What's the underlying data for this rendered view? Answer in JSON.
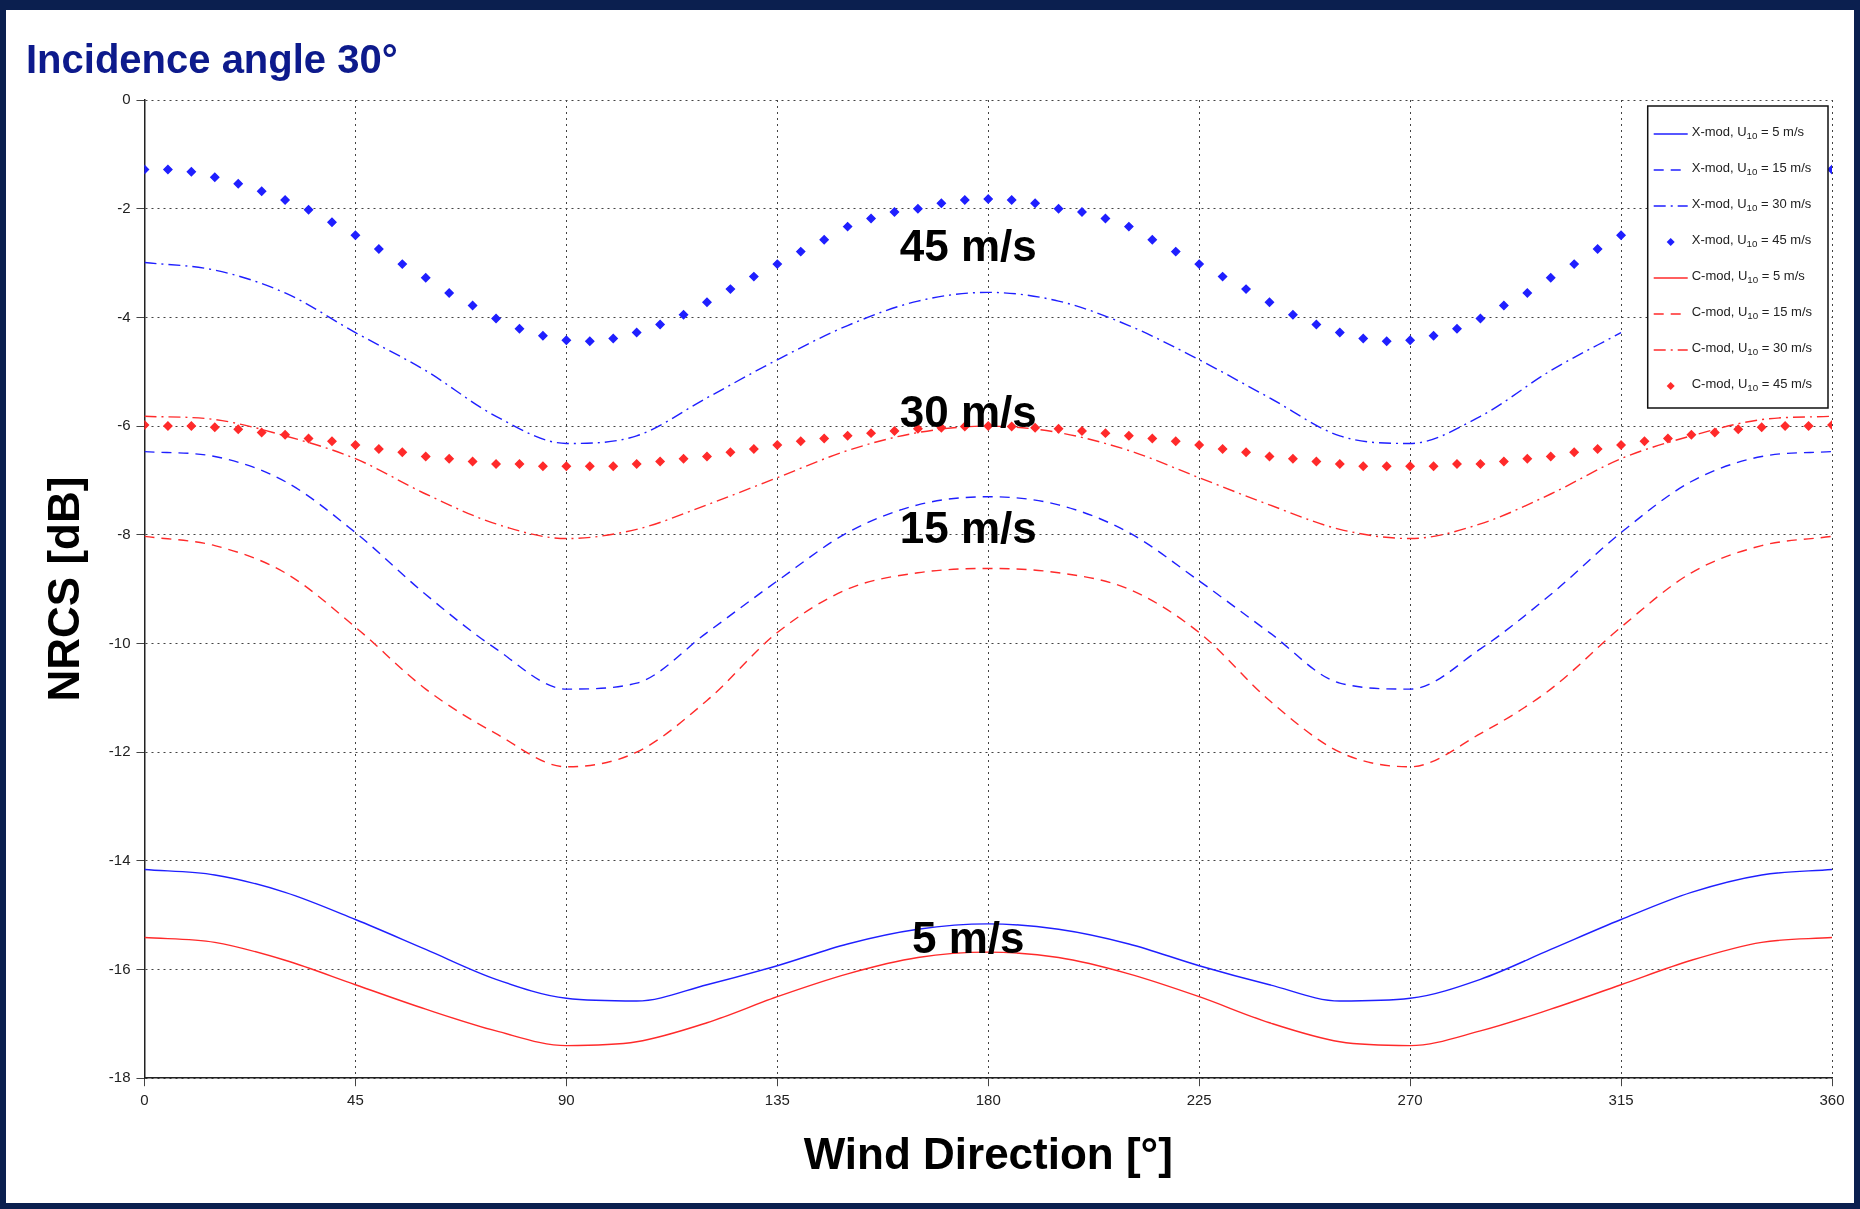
{
  "chart_data": {
    "type": "line",
    "title": "Incidence angle 30°",
    "xlabel": "Wind Direction [°]",
    "ylabel": "NRCS [dB]",
    "xlim": [
      0,
      360
    ],
    "xticks": [
      0,
      45,
      90,
      135,
      180,
      225,
      270,
      315,
      360
    ],
    "ylim": [
      -18,
      0
    ],
    "yticks": [
      -18,
      -16,
      -14,
      -12,
      -10,
      -8,
      -6,
      -4,
      -2,
      0
    ],
    "grid": true,
    "legend": "top right",
    "series": [
      {
        "name": "X-mod, U$_{10}$ = 5 m/s",
        "type": "line",
        "line_style": "solid",
        "marker": "none",
        "color": "#1f1fff",
        "x": [
          0,
          15,
          30,
          45,
          60,
          75,
          90,
          105,
          120,
          135,
          150,
          165,
          180,
          195,
          210,
          225,
          240,
          255,
          270,
          285,
          300,
          315,
          330,
          345,
          360
        ],
        "values": [
          -14.16,
          -14.26,
          -14.58,
          -15.08,
          -15.63,
          -16.18,
          -16.53,
          -16.58,
          -16.28,
          -15.93,
          -15.53,
          -15.26,
          -15.16,
          -15.26,
          -15.53,
          -15.93,
          -16.28,
          -16.58,
          -16.53,
          -16.18,
          -15.63,
          -15.08,
          -14.58,
          -14.26,
          -14.16
        ]
      },
      {
        "name": "X-mod, U$_{10}$ = 15 m/s",
        "type": "line",
        "line_style": "dashed",
        "marker": "none",
        "color": "#1f1fff",
        "x": [
          0,
          15,
          30,
          45,
          60,
          75,
          90,
          105,
          120,
          135,
          150,
          165,
          180,
          195,
          210,
          225,
          240,
          255,
          270,
          285,
          300,
          315,
          330,
          345,
          360
        ],
        "values": [
          -6.47,
          -6.56,
          -7.02,
          -7.96,
          -9.1,
          -10.1,
          -10.84,
          -10.73,
          -9.8,
          -8.85,
          -7.96,
          -7.45,
          -7.3,
          -7.45,
          -7.96,
          -8.85,
          -9.8,
          -10.73,
          -10.84,
          -10.1,
          -9.1,
          -7.96,
          -7.02,
          -6.56,
          -6.47
        ]
      },
      {
        "name": "X-mod, U$_{10}$ = 30 m/s",
        "type": "line",
        "line_style": "dashdot",
        "marker": "none",
        "color": "#1f1fff",
        "x": [
          0,
          15,
          30,
          45,
          60,
          75,
          90,
          105,
          120,
          135,
          150,
          165,
          180,
          195,
          210,
          225,
          240,
          255,
          270,
          285,
          300,
          315
        ],
        "values": [
          -2.99,
          -3.13,
          -3.55,
          -4.28,
          -4.98,
          -5.82,
          -6.32,
          -6.18,
          -5.48,
          -4.78,
          -4.15,
          -3.7,
          -3.54,
          -3.7,
          -4.15,
          -4.78,
          -5.48,
          -6.18,
          -6.32,
          -5.82,
          -4.98,
          -4.28
        ]
      },
      {
        "name": "X-mod, U$_{10}$ = 45 m/s",
        "type": "scatter",
        "marker": "diamond",
        "color": "#1f1fff",
        "x": [
          0,
          5,
          10,
          15,
          20,
          25,
          30,
          35,
          40,
          45,
          50,
          55,
          60,
          65,
          70,
          75,
          80,
          85,
          90,
          95,
          100,
          105,
          110,
          115,
          120,
          125,
          130,
          135,
          140,
          145,
          150,
          155,
          160,
          165,
          170,
          175,
          180,
          185,
          190,
          195,
          200,
          205,
          210,
          215,
          220,
          225,
          230,
          235,
          240,
          245,
          250,
          255,
          260,
          265,
          270,
          275,
          280,
          285,
          290,
          295,
          300,
          305,
          310,
          315,
          320,
          325,
          330,
          335,
          340,
          345,
          350,
          355,
          360
        ],
        "values": [
          -1.28,
          -1.28,
          -1.32,
          -1.42,
          -1.54,
          -1.68,
          -1.84,
          -2.02,
          -2.25,
          -2.49,
          -2.74,
          -3.02,
          -3.27,
          -3.55,
          -3.78,
          -4.02,
          -4.21,
          -4.34,
          -4.42,
          -4.44,
          -4.39,
          -4.28,
          -4.13,
          -3.95,
          -3.72,
          -3.48,
          -3.25,
          -3.02,
          -2.79,
          -2.57,
          -2.33,
          -2.18,
          -2.06,
          -2.0,
          -1.9,
          -1.84,
          -1.82,
          -1.84,
          -1.9,
          -2.0,
          -2.06,
          -2.18,
          -2.33,
          -2.57,
          -2.79,
          -3.02,
          -3.25,
          -3.48,
          -3.72,
          -3.95,
          -4.13,
          -4.28,
          -4.39,
          -4.44,
          -4.42,
          -4.34,
          -4.21,
          -4.02,
          -3.78,
          -3.55,
          -3.27,
          -3.02,
          -2.74,
          -2.49,
          null,
          null,
          null,
          null,
          null,
          null,
          null,
          null,
          -1.28
        ]
      },
      {
        "name": "C-mod, U$_{10}$ = 5 m/s",
        "type": "line",
        "line_style": "solid",
        "marker": "none",
        "color": "#ff2a2a",
        "x": [
          0,
          15,
          30,
          45,
          60,
          75,
          90,
          105,
          120,
          135,
          150,
          165,
          180,
          195,
          210,
          225,
          240,
          255,
          270,
          285,
          300,
          315,
          330,
          345,
          360
        ],
        "values": [
          -15.41,
          -15.5,
          -15.83,
          -16.28,
          -16.73,
          -17.13,
          -17.4,
          -17.33,
          -16.98,
          -16.5,
          -16.08,
          -15.78,
          -15.68,
          -15.78,
          -16.08,
          -16.5,
          -16.98,
          -17.33,
          -17.4,
          -17.13,
          -16.73,
          -16.28,
          -15.83,
          -15.5,
          -15.41
        ]
      },
      {
        "name": "C-mod, U$_{10}$ = 15 m/s",
        "type": "line",
        "line_style": "dashed",
        "marker": "none",
        "color": "#ff2a2a",
        "x": [
          0,
          15,
          30,
          45,
          60,
          75,
          90,
          105,
          120,
          135,
          150,
          165,
          180,
          195,
          210,
          225,
          240,
          255,
          270,
          285,
          300,
          315,
          330,
          345,
          360
        ],
        "values": [
          -8.03,
          -8.2,
          -8.7,
          -9.7,
          -10.84,
          -11.66,
          -12.27,
          -12.0,
          -11.05,
          -9.8,
          -9.0,
          -8.7,
          -8.62,
          -8.7,
          -9.0,
          -9.8,
          -11.05,
          -12.0,
          -12.27,
          -11.66,
          -10.84,
          -9.7,
          -8.7,
          -8.2,
          -8.03
        ]
      },
      {
        "name": "C-mod, U$_{10}$ = 30 m/s",
        "type": "line",
        "line_style": "dashdot",
        "marker": "none",
        "color": "#ff2a2a",
        "x": [
          0,
          15,
          30,
          45,
          60,
          75,
          90,
          105,
          120,
          135,
          150,
          165,
          180,
          195,
          210,
          225,
          240,
          255,
          270,
          285,
          300,
          315,
          330,
          345,
          360
        ],
        "values": [
          -5.82,
          -5.88,
          -6.18,
          -6.6,
          -7.25,
          -7.8,
          -8.07,
          -7.9,
          -7.45,
          -6.95,
          -6.45,
          -6.12,
          -6.0,
          -6.12,
          -6.45,
          -6.95,
          -7.45,
          -7.9,
          -8.07,
          -7.8,
          -7.25,
          -6.6,
          -6.18,
          -5.88,
          -5.82
        ]
      },
      {
        "name": "C-mod, U$_{10}$ = 45 m/s",
        "type": "scatter",
        "marker": "diamond",
        "color": "#ff2a2a",
        "x": [
          0,
          5,
          10,
          15,
          20,
          25,
          30,
          35,
          40,
          45,
          50,
          55,
          60,
          65,
          70,
          75,
          80,
          85,
          90,
          95,
          100,
          105,
          110,
          115,
          120,
          125,
          130,
          135,
          140,
          145,
          150,
          155,
          160,
          165,
          170,
          175,
          180,
          185,
          190,
          195,
          200,
          205,
          210,
          215,
          220,
          225,
          230,
          235,
          240,
          245,
          250,
          255,
          260,
          265,
          270,
          275,
          280,
          285,
          290,
          295,
          300,
          305,
          310,
          315,
          320,
          325,
          330,
          335,
          340,
          345,
          350,
          355,
          360
        ],
        "values": [
          -5.98,
          -6.0,
          -6.0,
          -6.02,
          -6.06,
          -6.12,
          -6.16,
          -6.23,
          -6.28,
          -6.35,
          -6.42,
          -6.48,
          -6.56,
          -6.6,
          -6.65,
          -6.7,
          -6.7,
          -6.74,
          -6.74,
          -6.74,
          -6.74,
          -6.7,
          -6.65,
          -6.6,
          -6.56,
          -6.48,
          -6.42,
          -6.35,
          -6.28,
          -6.23,
          -6.18,
          -6.13,
          -6.09,
          -6.05,
          -6.03,
          -6.01,
          -6.0,
          -6.01,
          -6.03,
          -6.05,
          -6.09,
          -6.13,
          -6.18,
          -6.23,
          -6.28,
          -6.35,
          -6.42,
          -6.48,
          -6.56,
          -6.6,
          -6.65,
          -6.7,
          -6.74,
          -6.74,
          -6.74,
          -6.74,
          -6.7,
          -6.7,
          -6.65,
          -6.6,
          -6.56,
          -6.48,
          -6.42,
          -6.35,
          -6.28,
          -6.23,
          -6.16,
          -6.12,
          -6.06,
          -6.02,
          -6.0,
          -6.0,
          -5.98
        ]
      }
    ],
    "annotations": [
      "45 m/s",
      "30 m/s",
      "15 m/s",
      "5 m/s"
    ]
  }
}
